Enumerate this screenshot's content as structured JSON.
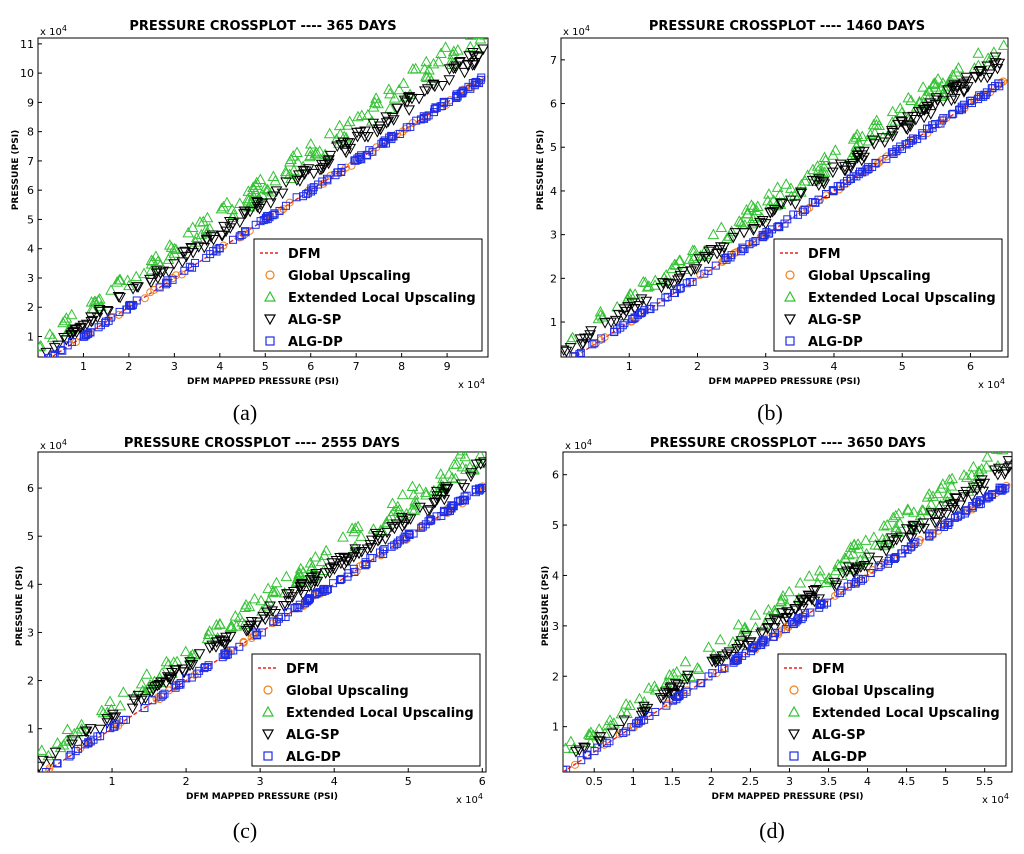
{
  "colors": {
    "dfm": "#e8231f",
    "global": "#f0821e",
    "extended": "#33c233",
    "alg_sp": "#000000",
    "alg_dp": "#1f2de6"
  },
  "legend": [
    "DFM",
    "Global Upscaling",
    "Extended Local Upscaling",
    "ALG-SP",
    "ALG-DP"
  ],
  "chart_data": [
    {
      "id": "a",
      "type": "scatter",
      "caption": "(a)",
      "title": "PRESSURE CROSSPLOT ----   365 DAYS",
      "xlabel": "DFM MAPPED PRESSURE (PSI)",
      "ylabel": "PRESSURE (PSI)",
      "x_multiplier": "x 10",
      "y_multiplier": "x 10",
      "exponent": "4",
      "xlim": [
        0,
        9.9
      ],
      "ylim": [
        0.3,
        11.2
      ],
      "xticks": [
        "1",
        "2",
        "3",
        "4",
        "5",
        "6",
        "7",
        "8",
        "9"
      ],
      "yticks": [
        "1",
        "2",
        "3",
        "4",
        "5",
        "6",
        "7",
        "8",
        "9",
        "10",
        "11"
      ],
      "series_slope": {
        "DFM": 1.0,
        "Global Upscaling": 1.0,
        "Extended Local Upscaling": 1.12,
        "ALG-SP": 1.07,
        "ALG-DP": 1.0
      },
      "series_offset": {
        "DFM": 0.0,
        "Global Upscaling": 0.0,
        "Extended Local Upscaling": 0.7,
        "ALG-SP": 0.35,
        "ALG-DP": 0.02
      }
    },
    {
      "id": "b",
      "type": "scatter",
      "caption": "(b)",
      "title": "PRESSURE CROSSPLOT ---- 1460 DAYS",
      "xlabel": "DFM MAPPED PRESSURE (PSI)",
      "ylabel": "PRESSURE (PSI)",
      "x_multiplier": "x 10",
      "y_multiplier": "x 10",
      "exponent": "4",
      "xlim": [
        0,
        6.55
      ],
      "ylim": [
        0.2,
        7.5
      ],
      "xticks": [
        "1",
        "2",
        "3",
        "4",
        "5",
        "6"
      ],
      "yticks": [
        "1",
        "2",
        "3",
        "4",
        "5",
        "6",
        "7"
      ],
      "series_slope": {
        "DFM": 1.0,
        "Global Upscaling": 1.0,
        "Extended Local Upscaling": 1.1,
        "ALG-SP": 1.06,
        "ALG-DP": 1.0
      },
      "series_offset": {
        "DFM": 0.0,
        "Global Upscaling": 0.0,
        "Extended Local Upscaling": 0.45,
        "ALG-SP": 0.25,
        "ALG-DP": 0.02
      }
    },
    {
      "id": "c",
      "type": "scatter",
      "caption": "(c)",
      "title": "PRESSURE CROSSPLOT ---- 2555 DAYS",
      "xlabel": "DFM MAPPED PRESSURE (PSI)",
      "ylabel": "PRESSURE (PSI)",
      "x_multiplier": "x 10",
      "y_multiplier": "x 10",
      "exponent": "4",
      "xlim": [
        0,
        6.05
      ],
      "ylim": [
        0.1,
        6.75
      ],
      "xticks": [
        "1",
        "2",
        "3",
        "4",
        "5",
        "6"
      ],
      "yticks": [
        "1",
        "2",
        "3",
        "4",
        "5",
        "6"
      ],
      "series_slope": {
        "DFM": 1.0,
        "Global Upscaling": 1.0,
        "Extended Local Upscaling": 1.09,
        "ALG-SP": 1.05,
        "ALG-DP": 1.0
      },
      "series_offset": {
        "DFM": 0.0,
        "Global Upscaling": 0.0,
        "Extended Local Upscaling": 0.4,
        "ALG-SP": 0.2,
        "ALG-DP": 0.02
      }
    },
    {
      "id": "d",
      "type": "scatter",
      "caption": "(d)",
      "title": "PRESSURE CROSSPLOT ---- 3650 DAYS",
      "xlabel": "DFM MAPPED PRESSURE (PSI)",
      "ylabel": "PRESSURE (PSI)",
      "x_multiplier": "x 10",
      "y_multiplier": "x 10",
      "exponent": "4",
      "xlim": [
        0.1,
        5.85
      ],
      "ylim": [
        0.1,
        6.45
      ],
      "xticks": [
        "0.5",
        "1",
        "1.5",
        "2",
        "2.5",
        "3",
        "3.5",
        "4",
        "4.5",
        "5",
        "5.5"
      ],
      "yticks": [
        "1",
        "2",
        "3",
        "4",
        "5",
        "6"
      ],
      "series_slope": {
        "DFM": 1.0,
        "Global Upscaling": 1.0,
        "Extended Local Upscaling": 1.08,
        "ALG-SP": 1.04,
        "ALG-DP": 1.0
      },
      "series_offset": {
        "DFM": 0.0,
        "Global Upscaling": 0.0,
        "Extended Local Upscaling": 0.35,
        "ALG-SP": 0.18,
        "ALG-DP": 0.02
      }
    }
  ]
}
